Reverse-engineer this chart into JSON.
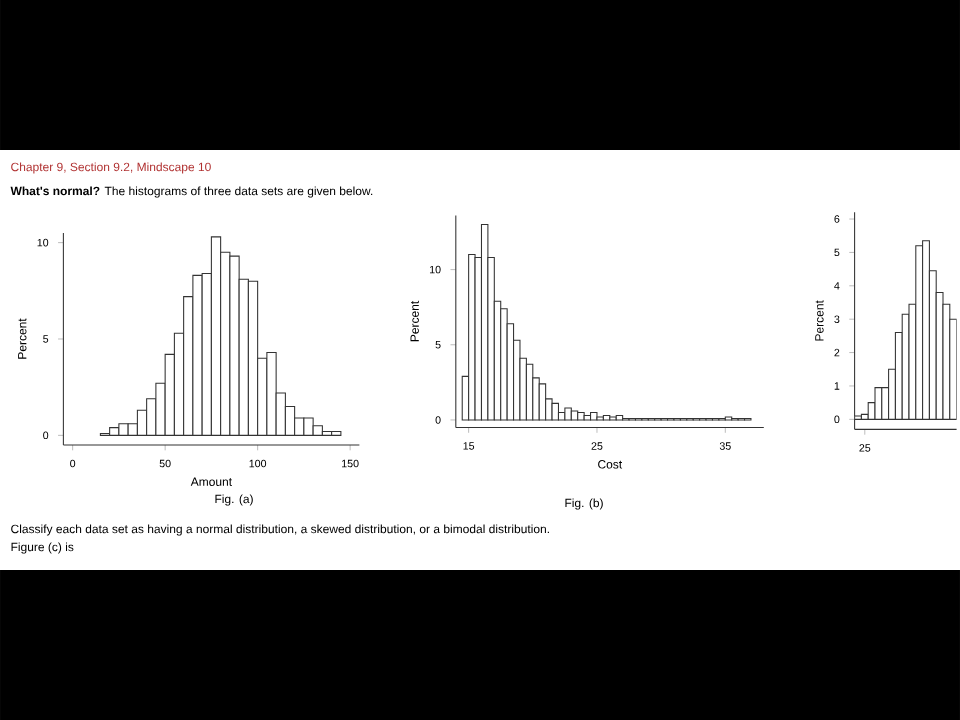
{
  "chart_data": [
    {
      "type": "histogram",
      "xlabel": "Amount",
      "ylabel": "Percent",
      "color": "#333333",
      "annotations": [
        "Chapter 9, Section 9.2, Mindscape 10",
        "**What's normal?** The histograms of three data sets are given below.",
        "Fig. (a)"
      ],
      "bins": [
        15,
        20,
        25,
        30,
        35,
        40,
        45,
        50,
        55,
        60,
        65,
        70,
        75,
        80,
        85,
        90,
        95,
        100,
        105,
        110,
        115,
        120,
        125,
        130,
        135,
        140,
        145
      ],
      "values": [
        0.1,
        0.4,
        0.6,
        0.6,
        1.3,
        1.9,
        2.7,
        4.2,
        5.3,
        7.2,
        8.3,
        8.4,
        10.3,
        9.5,
        9.3,
        8.1,
        8.0,
        4.0,
        4.3,
        2.2,
        1.5,
        0.9,
        0.9,
        0.5,
        0.2,
        0.2
      ],
      "xlim": [
        -5,
        155
      ],
      "ylim": [
        -0.5,
        10.5
      ],
      "xticks": [
        0,
        50,
        100,
        150
      ],
      "yticks": [
        0,
        5,
        10
      ]
    },
    {
      "type": "histogram",
      "xlabel": "Cost",
      "ylabel": "Percent",
      "color": "#333333",
      "annotations": [
        "Fig. (b)"
      ],
      "bins": [
        14.5,
        15,
        15.5,
        16,
        16.5,
        17,
        17.5,
        18,
        18.5,
        19,
        19.5,
        20,
        20.5,
        21,
        21.5,
        22,
        22.5,
        23,
        23.5,
        24,
        24.5,
        25,
        25.5,
        26,
        26.5,
        27,
        27.5,
        28,
        28.5,
        29,
        29.5,
        30,
        30.5,
        31,
        31.5,
        32,
        32.5,
        33,
        33.5,
        34,
        34.5,
        35,
        35.5,
        36,
        36.5,
        37
      ],
      "values": [
        2.9,
        11.0,
        10.8,
        13.0,
        10.8,
        7.9,
        7.4,
        6.4,
        5.3,
        4.1,
        3.7,
        2.8,
        2.4,
        1.4,
        1.1,
        0.5,
        0.8,
        0.6,
        0.5,
        0.3,
        0.5,
        0.2,
        0.3,
        0.2,
        0.3,
        0.1,
        0.1,
        0.1,
        0.1,
        0.1,
        0.1,
        0.1,
        0.1,
        0.1,
        0.1,
        0.1,
        0.1,
        0.1,
        0.1,
        0.1,
        0.1,
        0.2,
        0.1,
        0.1,
        0.1
      ],
      "xlim": [
        14,
        38
      ],
      "ylim": [
        -0.5,
        13.6
      ],
      "xticks": [
        15,
        25,
        35
      ],
      "yticks": [
        0,
        5,
        10
      ]
    },
    {
      "type": "bar",
      "ylabel": "Percent",
      "color": "#333333",
      "annotations": [
        "Classify each data set as having a normal distribution, a skewed distribution, or a bimodal distribution.",
        "Figure (c) is"
      ],
      "categories": [
        null,
        "25",
        null,
        null,
        null,
        null,
        null,
        null,
        null,
        null,
        null,
        null,
        null,
        null,
        null
      ],
      "values": [
        0.1,
        0.15,
        0.5,
        0.95,
        0.95,
        1.5,
        2.6,
        3.15,
        3.45,
        5.2,
        5.35,
        4.45,
        3.8,
        3.45,
        3.0
      ],
      "ylim": [
        -0.3,
        6.2
      ],
      "yticks": [
        0,
        1,
        2,
        3,
        4,
        5,
        6
      ]
    }
  ]
}
